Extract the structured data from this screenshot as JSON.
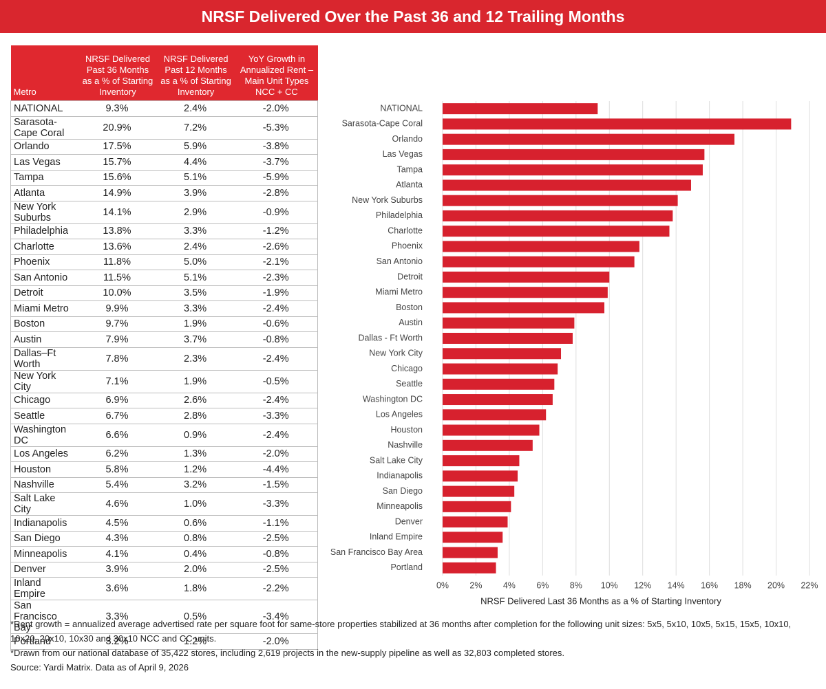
{
  "title": "NRSF Delivered Over the Past 36 and 12 Trailing Months",
  "table": {
    "headers": [
      "Metro",
      "NRSF Delivered Past 36 Months as a % of Starting Inventory",
      "NRSF Delivered Past 12 Months as a % of Starting Inventory",
      "YoY Growth in Annualized Rent –Main Unit Types NCC + CC"
    ],
    "rows": [
      [
        "NATIONAL",
        "9.3%",
        "2.4%",
        "-2.0%"
      ],
      [
        "Sarasota-Cape Coral",
        "20.9%",
        "7.2%",
        "-5.3%"
      ],
      [
        "Orlando",
        "17.5%",
        "5.9%",
        "-3.8%"
      ],
      [
        "Las Vegas",
        "15.7%",
        "4.4%",
        "-3.7%"
      ],
      [
        "Tampa",
        "15.6%",
        "5.1%",
        "-5.9%"
      ],
      [
        "Atlanta",
        "14.9%",
        "3.9%",
        "-2.8%"
      ],
      [
        "New York Suburbs",
        "14.1%",
        "2.9%",
        "-0.9%"
      ],
      [
        "Philadelphia",
        "13.8%",
        "3.3%",
        "-1.2%"
      ],
      [
        "Charlotte",
        "13.6%",
        "2.4%",
        "-2.6%"
      ],
      [
        "Phoenix",
        "11.8%",
        "5.0%",
        "-2.1%"
      ],
      [
        "San Antonio",
        "11.5%",
        "5.1%",
        "-2.3%"
      ],
      [
        "Detroit",
        "10.0%",
        "3.5%",
        "-1.9%"
      ],
      [
        "Miami Metro",
        "9.9%",
        "3.3%",
        "-2.4%"
      ],
      [
        "Boston",
        "9.7%",
        "1.9%",
        "-0.6%"
      ],
      [
        "Austin",
        "7.9%",
        "3.7%",
        "-0.8%"
      ],
      [
        "Dallas–Ft Worth",
        "7.8%",
        "2.3%",
        "-2.4%"
      ],
      [
        "New York City",
        "7.1%",
        "1.9%",
        "-0.5%"
      ],
      [
        "Chicago",
        "6.9%",
        "2.6%",
        "-2.4%"
      ],
      [
        "Seattle",
        "6.7%",
        "2.8%",
        "-3.3%"
      ],
      [
        "Washington DC",
        "6.6%",
        "0.9%",
        "-2.4%"
      ],
      [
        "Los Angeles",
        "6.2%",
        "1.3%",
        "-2.0%"
      ],
      [
        "Houston",
        "5.8%",
        "1.2%",
        "-4.4%"
      ],
      [
        "Nashville",
        "5.4%",
        "3.2%",
        "-1.5%"
      ],
      [
        "Salt Lake City",
        "4.6%",
        "1.0%",
        "-3.3%"
      ],
      [
        "Indianapolis",
        "4.5%",
        "0.6%",
        "-1.1%"
      ],
      [
        "San Diego",
        "4.3%",
        "0.8%",
        "-2.5%"
      ],
      [
        "Minneapolis",
        "4.1%",
        "0.4%",
        "-0.8%"
      ],
      [
        "Denver",
        "3.9%",
        "2.0%",
        "-2.5%"
      ],
      [
        "Inland Empire",
        "3.6%",
        "1.8%",
        "-2.2%"
      ],
      [
        "San Francisco Bay",
        "3.3%",
        "0.5%",
        "-3.4%"
      ],
      [
        "Portland",
        "3.2%",
        "1.2%",
        "-2.0%"
      ]
    ]
  },
  "chart_data": {
    "type": "hbar",
    "x_label": "NRSF Delivered Last 36 Months as a % of Starting Inventory",
    "categories": [
      "NATIONAL",
      "Sarasota-Cape Coral",
      "Orlando",
      "Las Vegas",
      "Tampa",
      "Atlanta",
      "New York Suburbs",
      "Philadelphia",
      "Charlotte",
      "Phoenix",
      "San Antonio",
      "Detroit",
      "Miami Metro",
      "Boston",
      "Austin",
      "Dallas - Ft Worth",
      "New York City",
      "Chicago",
      "Seattle",
      "Washington DC",
      "Los Angeles",
      "Houston",
      "Nashville",
      "Salt Lake City",
      "Indianapolis",
      "San Diego",
      "Minneapolis",
      "Denver",
      "Inland Empire",
      "San Francisco Bay Area",
      "Portland"
    ],
    "values": [
      9.3,
      20.9,
      17.5,
      15.7,
      15.6,
      14.9,
      14.1,
      13.8,
      13.6,
      11.8,
      11.5,
      10.0,
      9.9,
      9.7,
      7.9,
      7.8,
      7.1,
      6.9,
      6.7,
      6.6,
      6.2,
      5.8,
      5.4,
      4.6,
      4.5,
      4.3,
      4.1,
      3.9,
      3.6,
      3.3,
      3.2
    ],
    "color": "#d7212e",
    "xlim": [
      0,
      22
    ],
    "xticks": [
      {
        "value": 0,
        "label": "0%"
      },
      {
        "value": 2,
        "label": "2%"
      },
      {
        "value": 4,
        "label": "4%"
      },
      {
        "value": 6,
        "label": "6%"
      },
      {
        "value": 8,
        "label": "8%"
      },
      {
        "value": 10,
        "label": "10%"
      },
      {
        "value": 12,
        "label": "12%"
      },
      {
        "value": 14,
        "label": "14%"
      },
      {
        "value": 16,
        "label": "16%"
      },
      {
        "value": 18,
        "label": "18%"
      },
      {
        "value": 20,
        "label": "20%"
      },
      {
        "value": 22,
        "label": "22%"
      }
    ],
    "grid": true
  },
  "footnotes": [
    "*Rent growth = annualized average advertised rate per square foot for same-store properties stabilized at 36 months after completion for the following unit sizes: 5x5, 5x10, 10x5, 5x15, 15x5, 10x10, 10x20, 20x10, 10x30 and 30x10 NCC and CC units.",
    "*Drawn from our national database of 35,422 stores, including 2,619 projects in the new-supply pipeline as well as 32,803 completed stores.",
    "Source: Yardi Matrix. Data as of April 9, 2026"
  ]
}
